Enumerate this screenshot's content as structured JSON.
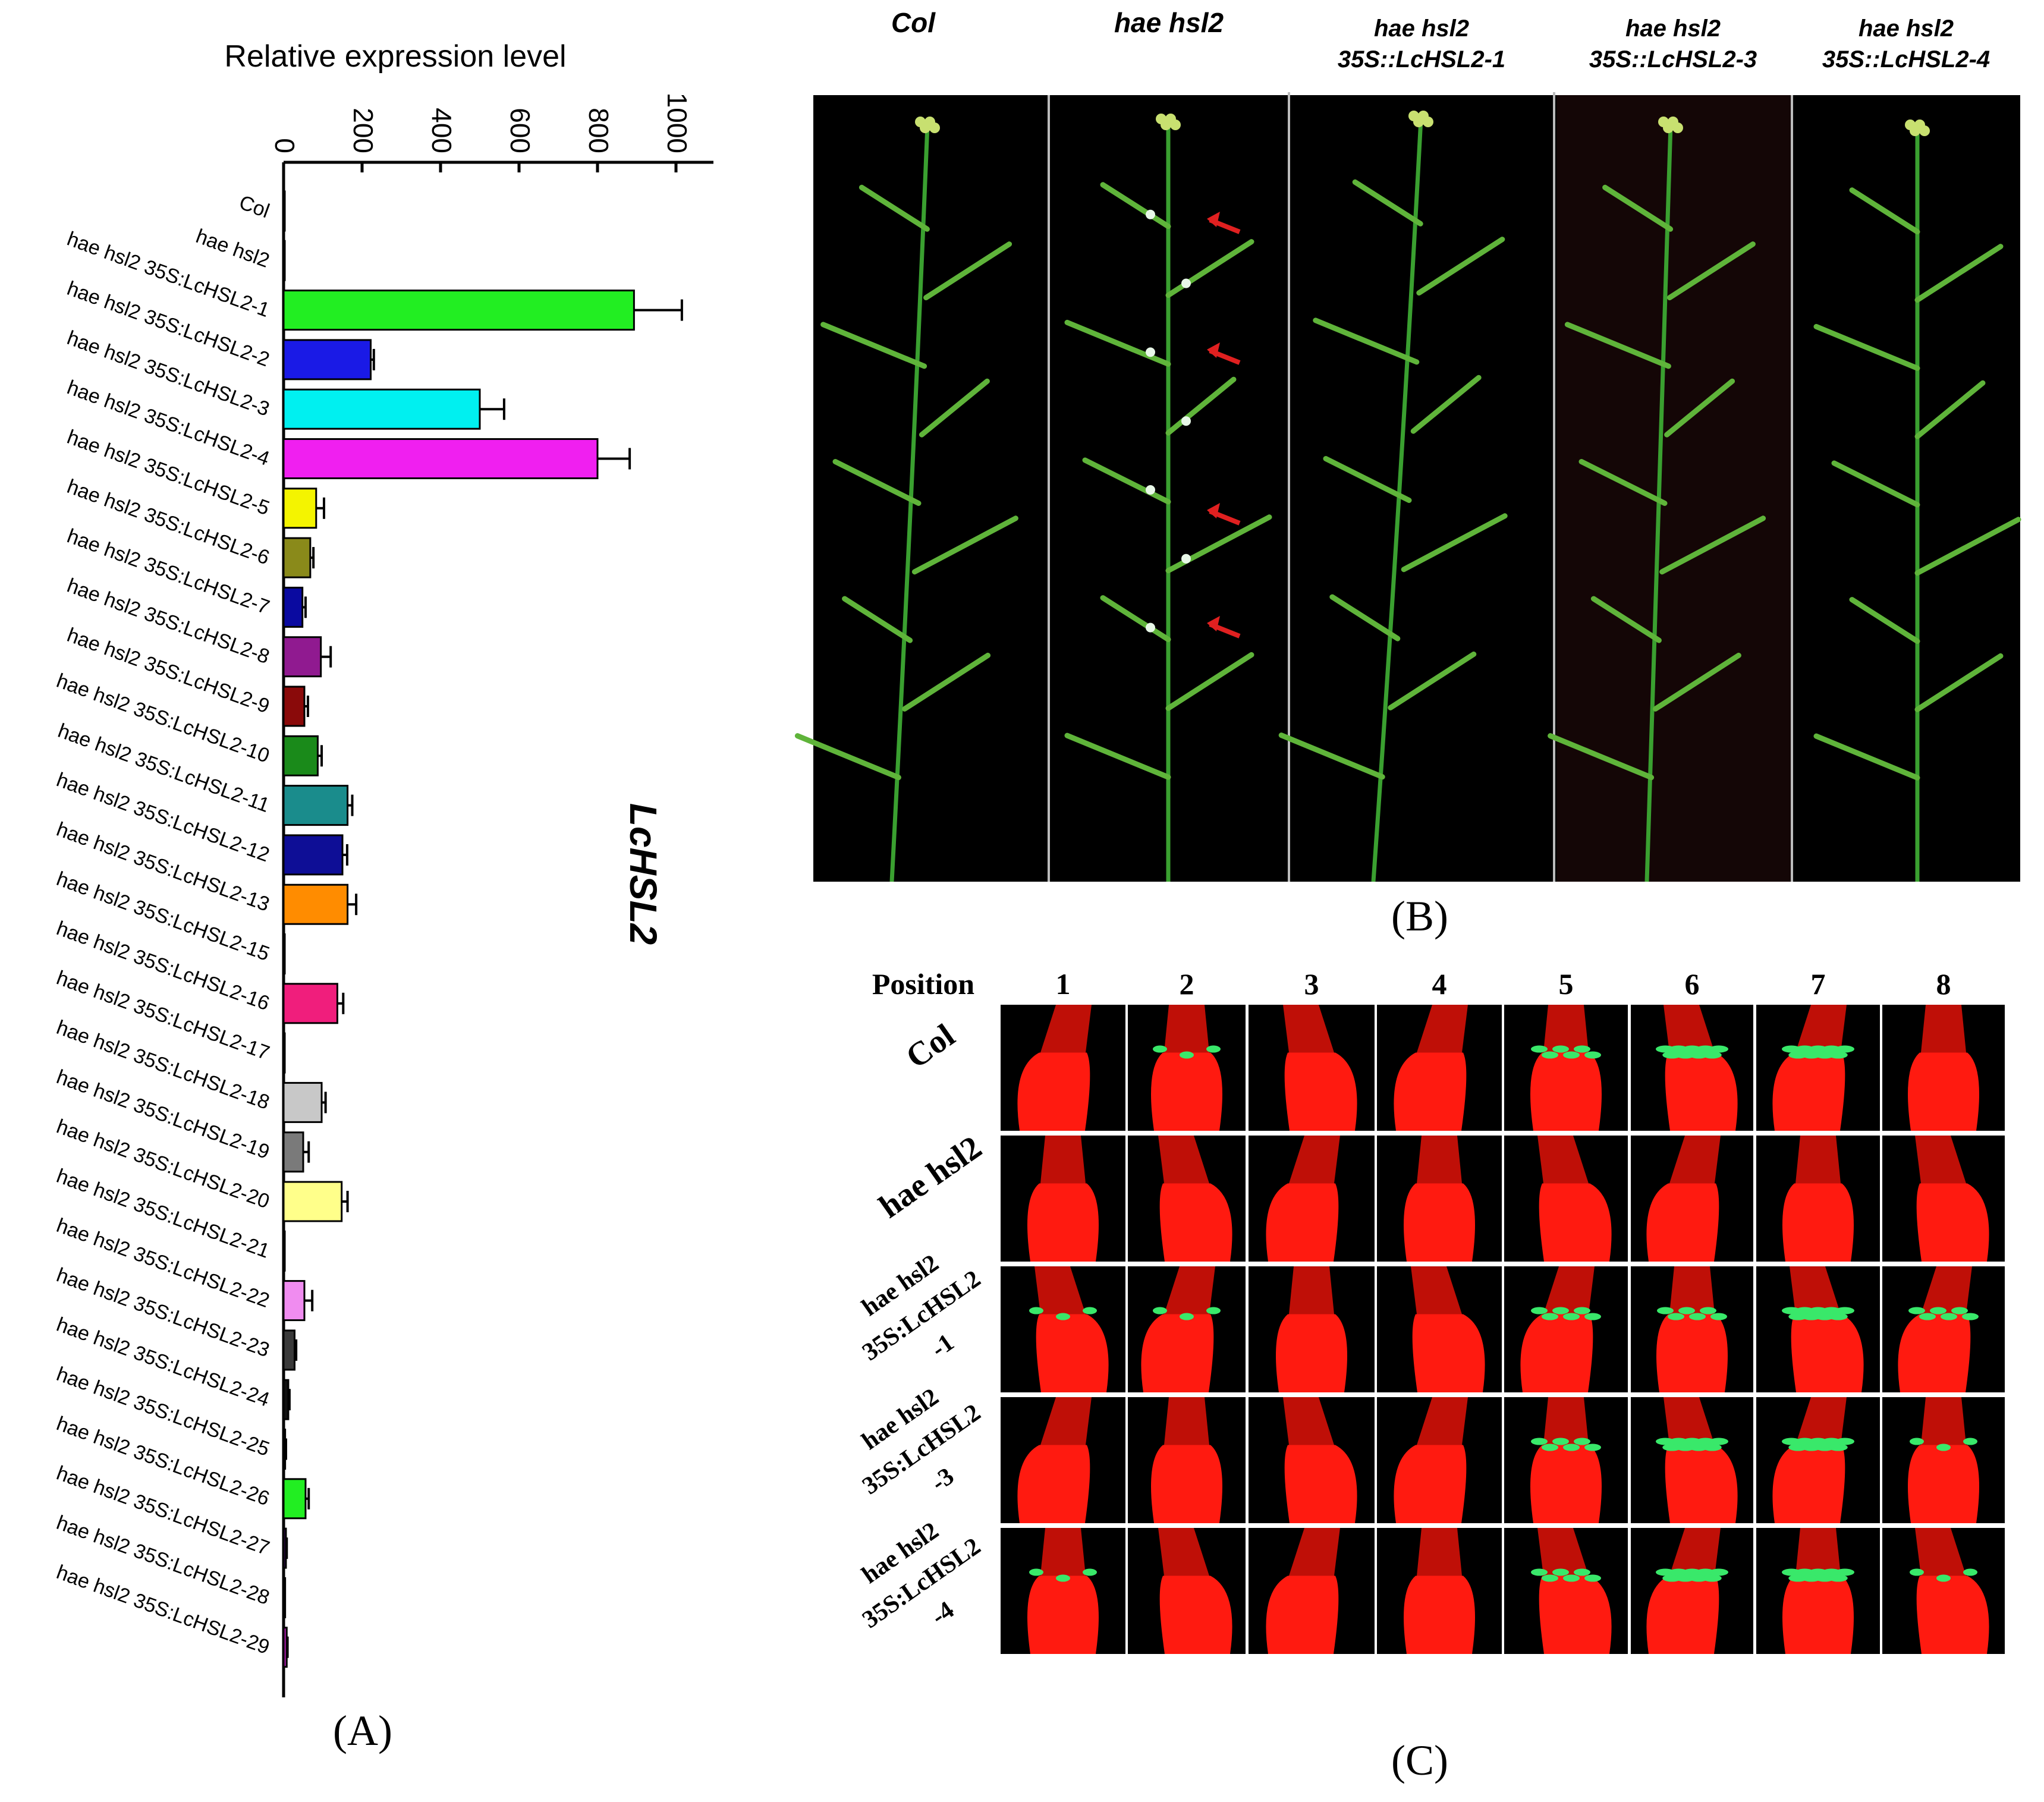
{
  "panel_a": {
    "letter": "(A)",
    "gene_label": "LcHSL2"
  },
  "chart_data": {
    "type": "bar",
    "orientation": "horizontal",
    "title": "",
    "xlabel": "Relative expression level",
    "ylabel": "",
    "xlim": [
      0,
      1000
    ],
    "ticks": [
      "0",
      "200",
      "400",
      "600",
      "800",
      "1000"
    ],
    "tick_values": [
      0,
      200,
      400,
      600,
      800,
      1000
    ],
    "categories": [
      "Col",
      "hae hsl2",
      "hae hsl2 35S:LcHSL2-1",
      "hae hsl2 35S:LcHSL2-2",
      "hae hsl2 35S:LcHSL2-3",
      "hae hsl2 35S:LcHSL2-4",
      "hae hsl2 35S:LcHSL2-5",
      "hae hsl2 35S:LcHSL2-6",
      "hae hsl2 35S:LcHSL2-7",
      "hae hsl2 35S:LcHSL2-8",
      "hae hsl2 35S:LcHSL2-9",
      "hae hsl2 35S:LcHSL2-10",
      "hae hsl2 35S:LcHSL2-11",
      "hae hsl2 35S:LcHSL2-12",
      "hae hsl2 35S:LcHSL2-13",
      "hae hsl2 35S:LcHSL2-15",
      "hae hsl2 35S:LcHSL2-16",
      "hae hsl2 35S:LcHSL2-17",
      "hae hsl2 35S:LcHSL2-18",
      "hae hsl2 35S:LcHSL2-19",
      "hae hsl2 35S:LcHSL2-20",
      "hae hsl2 35S:LcHSL2-21",
      "hae hsl2 35S:LcHSL2-22",
      "hae hsl2 35S:LcHSL2-23",
      "hae hsl2 35S:LcHSL2-24",
      "hae hsl2 35S:LcHSL2-25",
      "hae hsl2 35S:LcHSL2-26",
      "hae hsl2 35S:LcHSL2-27",
      "hae hsl2 35S:LcHSL2-28",
      "hae hsl2 35S:LcHSL2-29"
    ],
    "values": [
      1,
      1,
      893,
      222,
      500,
      800,
      83,
      68,
      48,
      95,
      53,
      87,
      163,
      150,
      163,
      2,
      137,
      1,
      97,
      50,
      148,
      1,
      53,
      28,
      12,
      4,
      56,
      6,
      4,
      8
    ],
    "errors": [
      0.5,
      0.5,
      122,
      8,
      62,
      82,
      20,
      8,
      8,
      25,
      9,
      10,
      12,
      12,
      22,
      1,
      15,
      1,
      10,
      14,
      15,
      1,
      20,
      4,
      3,
      2,
      8,
      2,
      1,
      2
    ],
    "colors": [
      "#000000",
      "#000000",
      "#22ee22",
      "#1a1ae6",
      "#00f0f0",
      "#f01ff0",
      "#f4f400",
      "#8a8a1a",
      "#0a0aa0",
      "#901a90",
      "#8a0a0a",
      "#1a8a1a",
      "#1a8c8c",
      "#0e0e96",
      "#ff8c00",
      "#000000",
      "#f01e7c",
      "#000000",
      "#c8c8c8",
      "#7a7a7a",
      "#ffff8a",
      "#000000",
      "#f08cf0",
      "#3a3a3a",
      "#111111",
      "#6a0a0a",
      "#22ee22",
      "#3a0a5a",
      "#0a5a5a",
      "#a01aa0"
    ]
  },
  "panel_b": {
    "letter": "(B)",
    "columns": [
      {
        "line1": "Col",
        "line2": ""
      },
      {
        "line1": "hae hsl2",
        "line2": ""
      },
      {
        "line1": "hae hsl2",
        "line2": "35S::LcHSL2-1"
      },
      {
        "line1": "hae hsl2",
        "line2": "35S::LcHSL2-3"
      },
      {
        "line1": "hae hsl2",
        "line2": "35S::LcHSL2-4"
      }
    ]
  },
  "panel_c": {
    "letter": "(C)",
    "position_label": "Position",
    "positions": [
      "1",
      "2",
      "3",
      "4",
      "5",
      "6",
      "7",
      "8"
    ],
    "rows": [
      {
        "lines": [
          "Col"
        ]
      },
      {
        "lines": [
          "hae hsl2"
        ]
      },
      {
        "lines": [
          "hae hsl2",
          "35S:LcHSL2",
          "-1"
        ]
      },
      {
        "lines": [
          "hae hsl2",
          "35S:LcHSL2",
          "-3"
        ]
      },
      {
        "lines": [
          "hae hsl2",
          "35S:LcHSL2",
          "-4"
        ]
      }
    ],
    "gfp_levels": [
      [
        0,
        1,
        0,
        0,
        2,
        3,
        3,
        0
      ],
      [
        0,
        0,
        0,
        0,
        0,
        0,
        0,
        0
      ],
      [
        1,
        1,
        0,
        0,
        2,
        2,
        3,
        2
      ],
      [
        0,
        0,
        0,
        0,
        2,
        3,
        3,
        1
      ],
      [
        1,
        0,
        0,
        0,
        2,
        3,
        3,
        1
      ]
    ]
  }
}
